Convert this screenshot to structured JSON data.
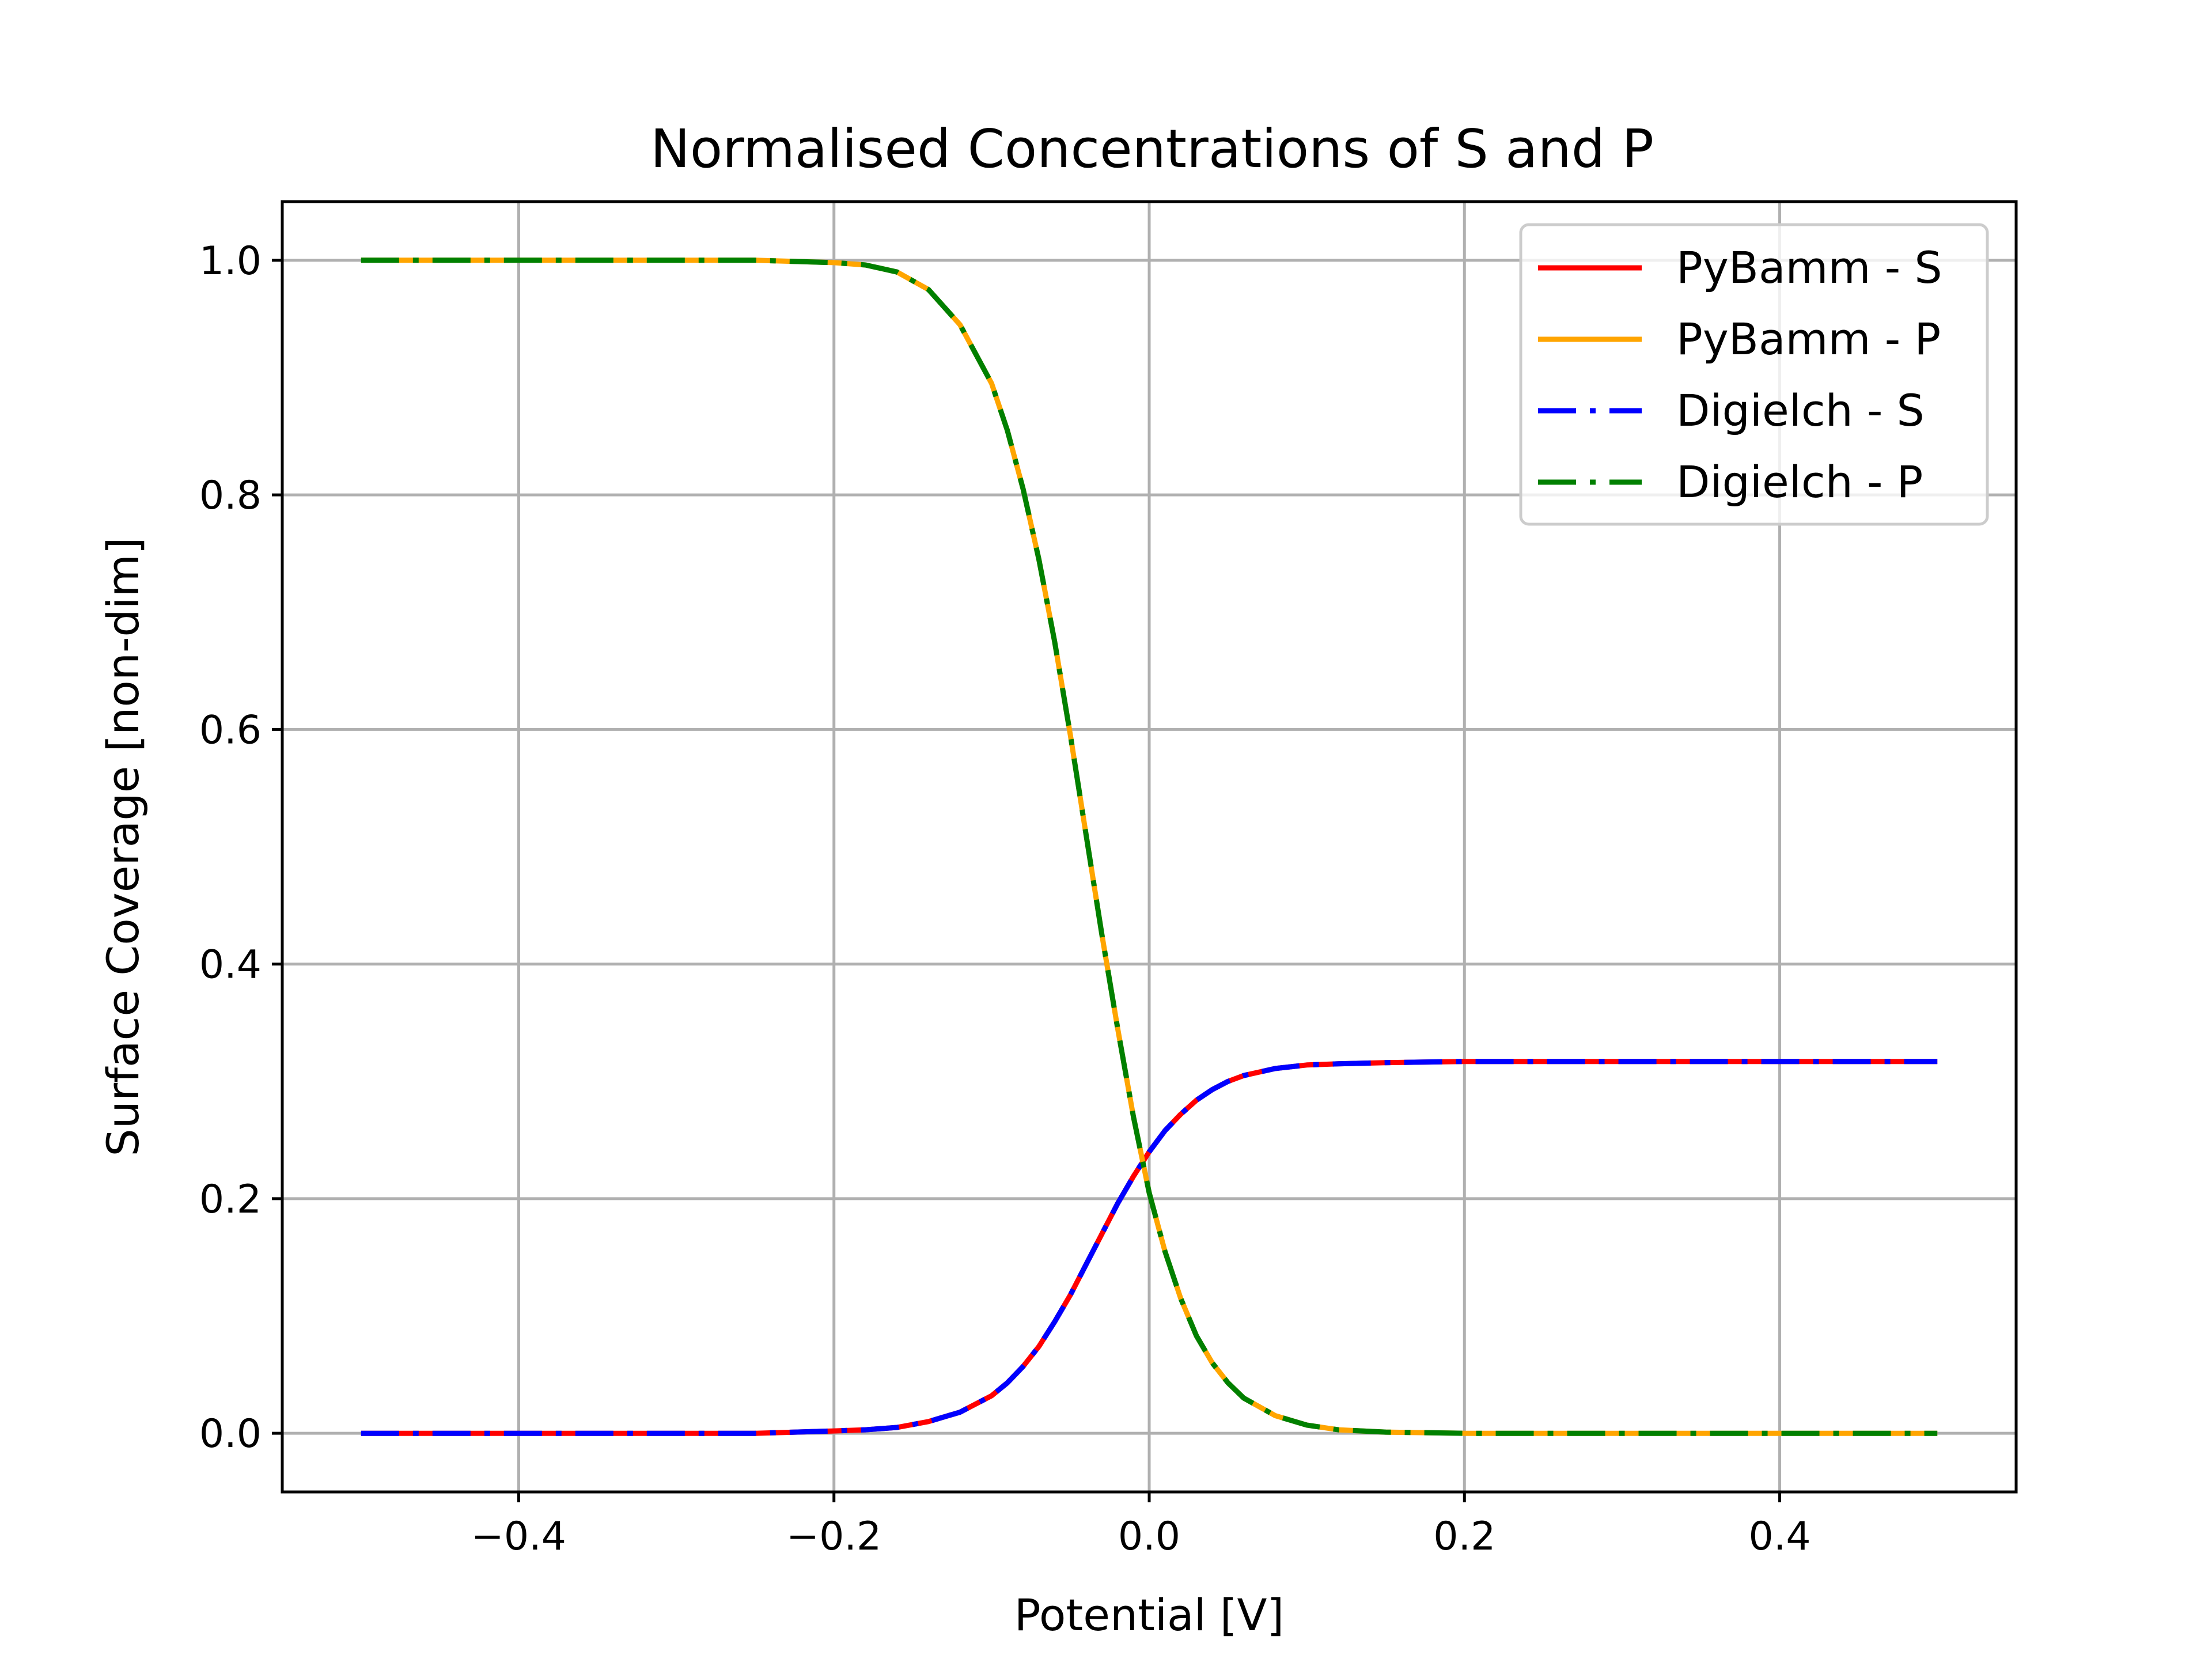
{
  "chart_data": {
    "type": "line",
    "title": "Normalised Concentrations of S and P",
    "xlabel": "Potential [V]",
    "ylabel": "Surface Coverage [non-dim]",
    "xlim": [
      -0.55,
      0.55
    ],
    "ylim": [
      -0.05,
      1.05
    ],
    "xticks": [
      -0.4,
      -0.2,
      0.0,
      0.2,
      0.4
    ],
    "xtick_labels": [
      "−0.4",
      "−0.2",
      "0.0",
      "0.2",
      "0.4"
    ],
    "yticks": [
      0.0,
      0.2,
      0.4,
      0.6,
      0.8,
      1.0
    ],
    "ytick_labels": [
      "0.0",
      "0.2",
      "0.4",
      "0.6",
      "0.8",
      "1.0"
    ],
    "grid": true,
    "legend_position": "top-right",
    "x": [
      -0.5,
      -0.4,
      -0.3,
      -0.25,
      -0.2,
      -0.18,
      -0.16,
      -0.14,
      -0.12,
      -0.1,
      -0.09,
      -0.08,
      -0.07,
      -0.06,
      -0.05,
      -0.04,
      -0.03,
      -0.02,
      -0.01,
      0.0,
      0.01,
      0.02,
      0.03,
      0.04,
      0.05,
      0.06,
      0.08,
      0.1,
      0.12,
      0.15,
      0.2,
      0.3,
      0.4,
      0.5
    ],
    "series": [
      {
        "name": "PyBamm - S",
        "color": "#ff0000",
        "style": "solid",
        "values": [
          0.0,
          0.0,
          0.0,
          0.0,
          0.002,
          0.003,
          0.005,
          0.01,
          0.018,
          0.032,
          0.043,
          0.057,
          0.074,
          0.095,
          0.118,
          0.144,
          0.17,
          0.196,
          0.219,
          0.24,
          0.258,
          0.272,
          0.284,
          0.293,
          0.3,
          0.305,
          0.311,
          0.314,
          0.315,
          0.316,
          0.317,
          0.317,
          0.317,
          0.317
        ]
      },
      {
        "name": "PyBamm - P",
        "color": "#ffa500",
        "style": "solid",
        "values": [
          1.0,
          1.0,
          1.0,
          1.0,
          0.998,
          0.996,
          0.99,
          0.975,
          0.945,
          0.895,
          0.855,
          0.805,
          0.745,
          0.675,
          0.595,
          0.51,
          0.425,
          0.345,
          0.27,
          0.205,
          0.155,
          0.115,
          0.083,
          0.06,
          0.043,
          0.03,
          0.015,
          0.007,
          0.003,
          0.001,
          0.0,
          0.0,
          0.0,
          0.0
        ]
      },
      {
        "name": "Digielch - S",
        "color": "#0000ff",
        "style": "dashdot",
        "values": [
          0.0,
          0.0,
          0.0,
          0.0,
          0.002,
          0.003,
          0.005,
          0.01,
          0.018,
          0.032,
          0.043,
          0.057,
          0.074,
          0.095,
          0.118,
          0.144,
          0.17,
          0.196,
          0.219,
          0.24,
          0.258,
          0.272,
          0.284,
          0.293,
          0.3,
          0.305,
          0.311,
          0.314,
          0.315,
          0.316,
          0.317,
          0.317,
          0.317,
          0.317
        ]
      },
      {
        "name": "Digielch - P",
        "color": "#008000",
        "style": "dashdot",
        "values": [
          1.0,
          1.0,
          1.0,
          1.0,
          0.998,
          0.996,
          0.99,
          0.975,
          0.945,
          0.895,
          0.855,
          0.805,
          0.745,
          0.675,
          0.595,
          0.51,
          0.425,
          0.345,
          0.27,
          0.205,
          0.155,
          0.115,
          0.083,
          0.06,
          0.043,
          0.03,
          0.015,
          0.007,
          0.003,
          0.001,
          0.0,
          0.0,
          0.0,
          0.0
        ]
      }
    ]
  }
}
